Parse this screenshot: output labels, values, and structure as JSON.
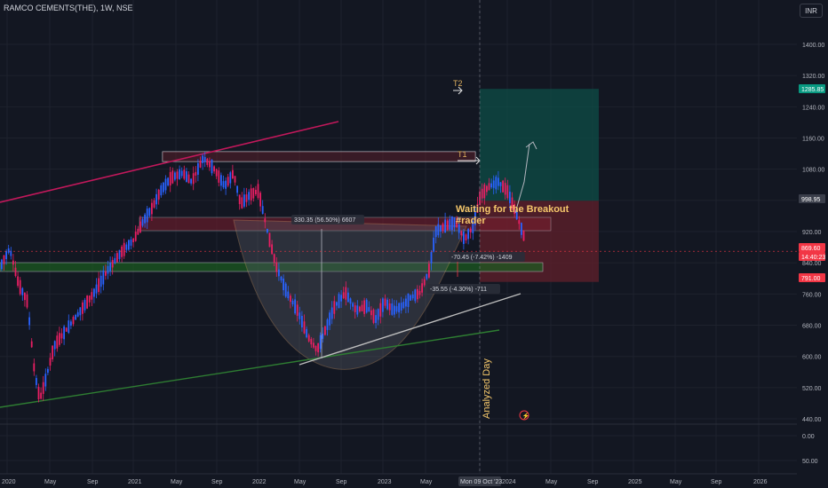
{
  "header": {
    "title": "RAMCO CEMENTS(THE), 1W, NSE"
  },
  "currency": "INR",
  "colors": {
    "background": "#131722",
    "up": "#26a69a",
    "down": "#ef5350",
    "candle_up": "#2962ff",
    "candle_down": "#e91e63",
    "target_zone": "#0e4d47",
    "stop_zone": "#5d1f2a",
    "support_zone": "#1b5e20",
    "trend_red": "#c2185b",
    "trend_green": "#2e7d32",
    "trend_white": "#bdbdbd"
  },
  "chart_data": {
    "type": "candlestick",
    "title": "RAMCO CEMENTS(THE), 1W, NSE",
    "y_scale": "log",
    "ylim": [
      40,
      1500
    ],
    "price_axis_ticks": [
      "1400.00",
      "1320.00",
      "1240.00",
      "1160.00",
      "1080.00",
      "1000.00",
      "920.00",
      "840.00",
      "760.00",
      "680.00",
      "600.00",
      "520.00",
      "440.00",
      "0.00",
      "50.00"
    ],
    "time_axis_ticks": [
      "2020",
      "May",
      "Sep",
      "2021",
      "May",
      "Sep",
      "2022",
      "May",
      "Sep",
      "2023",
      "May",
      "Mon 09 Oct '23",
      "2024",
      "May",
      "Sep",
      "2025",
      "May",
      "Sep",
      "2026"
    ],
    "price_labels": [
      {
        "text": "1285.85",
        "value": 1285.85,
        "color": "#089981"
      },
      {
        "text": "998.95",
        "value": 998.95,
        "color": "#3a3e4a"
      },
      {
        "text": "869.60",
        "value": 869.6,
        "color": "#f23645"
      },
      {
        "text": "14:40:23",
        "value": 850,
        "color": "#f23645"
      },
      {
        "text": "791.00",
        "value": 791.0,
        "color": "#f23645"
      }
    ],
    "annotations": [
      {
        "text": "T2",
        "kind": "target"
      },
      {
        "text": "T1",
        "kind": "target"
      },
      {
        "text": "330.35 (56.50%) 6607",
        "kind": "measure"
      },
      {
        "text": "-70.45 (-7.42%) -1409",
        "kind": "measure"
      },
      {
        "text": "-35.55 (-4.30%) -711",
        "kind": "measure"
      },
      {
        "text": "Waiting for the Breakout",
        "kind": "note"
      },
      {
        "text": "#rader",
        "kind": "note"
      },
      {
        "text": "Analyzed Day",
        "kind": "note"
      }
    ],
    "candles_approx": [
      {
        "period": "2020-01",
        "close": 780
      },
      {
        "period": "2020-03",
        "close": 520
      },
      {
        "period": "2020-05",
        "close": 620
      },
      {
        "period": "2020-09",
        "close": 750
      },
      {
        "period": "2020-12",
        "close": 840
      },
      {
        "period": "2021-03",
        "close": 1000
      },
      {
        "period": "2021-06",
        "close": 1100
      },
      {
        "period": "2021-09",
        "close": 1050
      },
      {
        "period": "2021-12",
        "close": 980
      },
      {
        "period": "2022-03",
        "close": 760
      },
      {
        "period": "2022-06",
        "close": 600
      },
      {
        "period": "2022-09",
        "close": 780
      },
      {
        "period": "2022-12",
        "close": 720
      },
      {
        "period": "2023-03",
        "close": 760
      },
      {
        "period": "2023-06",
        "close": 930
      },
      {
        "period": "2023-09",
        "close": 900
      },
      {
        "period": "2023-12",
        "close": 1050
      },
      {
        "period": "2024-02",
        "close": 869.6
      }
    ],
    "levels": {
      "resistance_zone_top": [
        1115,
        1095
      ],
      "supply_zone": [
        945,
        915
      ],
      "support_zone": [
        825,
        800
      ],
      "target_box": [
        1285.85,
        998.95
      ],
      "stop_box": [
        998.95,
        791.0
      ]
    }
  }
}
